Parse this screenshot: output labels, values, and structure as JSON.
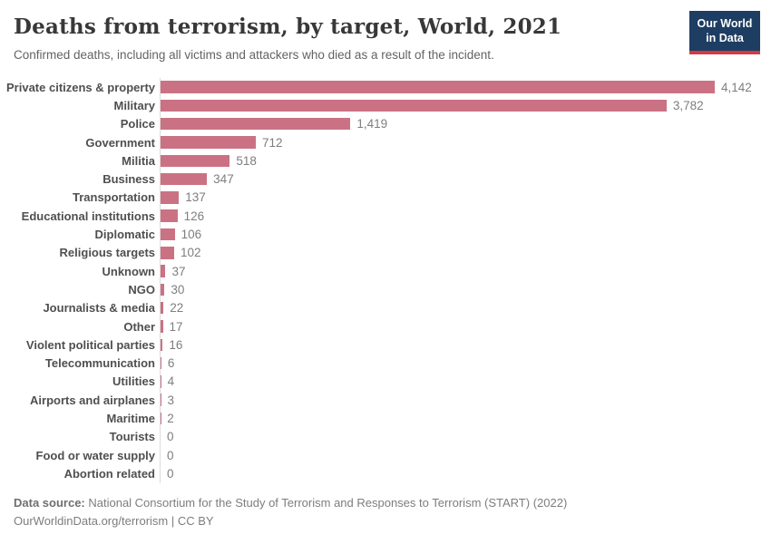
{
  "header": {
    "title": "Deaths from terrorism, by target, World, 2021",
    "subtitle": "Confirmed deaths, including all victims and attackers who died as a result of the incident.",
    "logo": {
      "line1": "Our World",
      "line2": "in Data",
      "background": "#1d3d63",
      "stripe": "#d23b43"
    }
  },
  "chart_data": {
    "type": "bar",
    "orientation": "horizontal",
    "title": "Deaths from terrorism, by target, World, 2021",
    "subtitle": "Confirmed deaths, including all victims and attackers who died as a result of the incident.",
    "categories": [
      "Private citizens & property",
      "Military",
      "Police",
      "Government",
      "Militia",
      "Business",
      "Transportation",
      "Educational institutions",
      "Diplomatic",
      "Religious targets",
      "Unknown",
      "NGO",
      "Journalists & media",
      "Other",
      "Violent political parties",
      "Telecommunication",
      "Utilities",
      "Airports and airplanes",
      "Maritime",
      "Tourists",
      "Food or water supply",
      "Abortion related"
    ],
    "values": [
      4142,
      3782,
      1419,
      712,
      518,
      347,
      137,
      126,
      106,
      102,
      37,
      30,
      22,
      17,
      16,
      6,
      4,
      3,
      2,
      0,
      0,
      0
    ],
    "value_labels": [
      "4,142",
      "3,782",
      "1,419",
      "712",
      "518",
      "347",
      "137",
      "126",
      "106",
      "102",
      "37",
      "30",
      "22",
      "17",
      "16",
      "6",
      "4",
      "3",
      "2",
      "0",
      "0",
      "0"
    ],
    "xlim": [
      0,
      4142
    ],
    "bar_color": "#ca7284",
    "axis_color": "#dcdcdc",
    "grid": false,
    "legend": false
  },
  "footer": {
    "data_source_label": "Data source:",
    "data_source_text": " National Consortium for the Study of Terrorism and Responses to Terrorism (START) (2022)",
    "attribution": "OurWorldinData.org/terrorism | CC BY"
  }
}
